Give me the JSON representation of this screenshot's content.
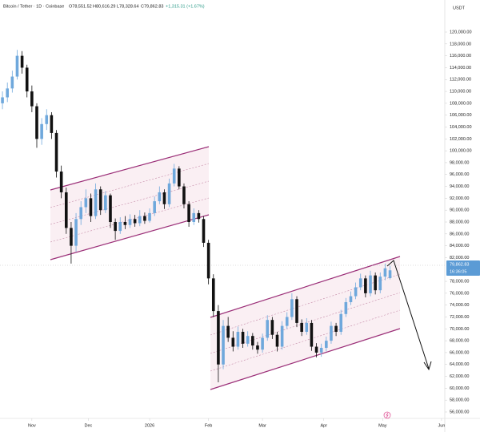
{
  "chart_data": {
    "type": "candlestick",
    "header": {
      "symbol": "Bitcoin / Tether · 1D · Coinbase",
      "open": "O78,551.52",
      "high": "H80,616.29",
      "low": "L78,328.64",
      "close": "C79,862.83",
      "change": "+1,315.31 (+1.67%)"
    },
    "currency": "USDT",
    "last_price_label": "79,862.83",
    "countdown": "16:36:05",
    "up_color": "#6fa8dc",
    "down_color": "#111111",
    "xlim": [
      -0.5,
      90
    ],
    "ylim": [
      54920,
      125400
    ],
    "xticks": [
      {
        "value": 6,
        "label": "Nov"
      },
      {
        "value": 17.5,
        "label": "Dec"
      },
      {
        "value": 30,
        "label": "2026"
      },
      {
        "value": 42,
        "label": "Feb"
      },
      {
        "value": 53,
        "label": "Mar"
      },
      {
        "value": 65.5,
        "label": "Apr"
      },
      {
        "value": 77.5,
        "label": "May"
      },
      {
        "value": 89.5,
        "label": "Jun"
      }
    ],
    "yticks": [
      {
        "value": 56000,
        "label": "56,000.00"
      },
      {
        "value": 58000,
        "label": "58,000.00"
      },
      {
        "value": 60000,
        "label": "60,000.00"
      },
      {
        "value": 62000,
        "label": "62,000.00"
      },
      {
        "value": 64000,
        "label": "64,000.00"
      },
      {
        "value": 66000,
        "label": "66,000.00"
      },
      {
        "value": 68000,
        "label": "68,000.00"
      },
      {
        "value": 70000,
        "label": "70,000.00"
      },
      {
        "value": 72000,
        "label": "72,000.00"
      },
      {
        "value": 74000,
        "label": "74,000.00"
      },
      {
        "value": 76000,
        "label": "76,000.00"
      },
      {
        "value": 78000,
        "label": "78,000.00"
      },
      {
        "value": 82000,
        "label": "82,000.00"
      },
      {
        "value": 84000,
        "label": "84,000.00"
      },
      {
        "value": 86000,
        "label": "86,000.00"
      },
      {
        "value": 88000,
        "label": "88,000.00"
      },
      {
        "value": 90000,
        "label": "90,000.00"
      },
      {
        "value": 92000,
        "label": "92,000.00"
      },
      {
        "value": 94000,
        "label": "94,000.00"
      },
      {
        "value": 96000,
        "label": "96,000.00"
      },
      {
        "value": 98000,
        "label": "98,000.00"
      },
      {
        "value": 100000,
        "label": "100,000.00"
      },
      {
        "value": 102000,
        "label": "102,000.00"
      },
      {
        "value": 104000,
        "label": "104,000.00"
      },
      {
        "value": 106000,
        "label": "106,000.00"
      },
      {
        "value": 108000,
        "label": "108,000.00"
      },
      {
        "value": 110000,
        "label": "110,000.00"
      },
      {
        "value": 112000,
        "label": "112,000.00"
      },
      {
        "value": 114000,
        "label": "114,000.00"
      },
      {
        "value": 116000,
        "label": "116,000.00"
      },
      {
        "value": 118000,
        "label": "118,000.00"
      },
      {
        "value": 120000,
        "label": "120,000.00"
      }
    ],
    "ohlc": [
      [
        108000,
        110000,
        107000,
        109000
      ],
      [
        109000,
        111500,
        108200,
        110500
      ],
      [
        110500,
        113500,
        109800,
        112500
      ],
      [
        112500,
        117000,
        112000,
        116000
      ],
      [
        116000,
        116800,
        113000,
        114000
      ],
      [
        114000,
        114500,
        109000,
        110000
      ],
      [
        110000,
        111000,
        106500,
        107500
      ],
      [
        107500,
        108000,
        100500,
        102000
      ],
      [
        102000,
        105500,
        101000,
        104500
      ],
      [
        104500,
        107000,
        103500,
        106000
      ],
      [
        106000,
        106500,
        102000,
        103000
      ],
      [
        103000,
        103500,
        95500,
        96500
      ],
      [
        96500,
        97500,
        92000,
        93000
      ],
      [
        93000,
        93800,
        86000,
        87000
      ],
      [
        87000,
        88000,
        81000,
        84000
      ],
      [
        84000,
        89500,
        83000,
        88500
      ],
      [
        88500,
        91500,
        87500,
        90500
      ],
      [
        90500,
        93500,
        89500,
        92000
      ],
      [
        92000,
        92800,
        88000,
        89000
      ],
      [
        89000,
        94500,
        88500,
        93500
      ],
      [
        93500,
        94000,
        89200,
        90000
      ],
      [
        90000,
        93200,
        89500,
        92500
      ],
      [
        92500,
        92800,
        87000,
        88000
      ],
      [
        88000,
        88600,
        85000,
        86500
      ],
      [
        86500,
        88800,
        86000,
        88000
      ],
      [
        88000,
        89000,
        86800,
        87500
      ],
      [
        87500,
        89300,
        87000,
        88500
      ],
      [
        88500,
        89200,
        87200,
        87800
      ],
      [
        87800,
        90000,
        87300,
        89000
      ],
      [
        89000,
        89600,
        87700,
        88200
      ],
      [
        88200,
        90300,
        87900,
        89500
      ],
      [
        89500,
        92300,
        89000,
        91500
      ],
      [
        91500,
        94000,
        91000,
        93000
      ],
      [
        93000,
        93500,
        90200,
        91000
      ],
      [
        91000,
        95300,
        90500,
        94500
      ],
      [
        94500,
        97800,
        94000,
        97000
      ],
      [
        97000,
        97400,
        93500,
        94000
      ],
      [
        94000,
        94500,
        90300,
        91000
      ],
      [
        91000,
        91500,
        87200,
        88000
      ],
      [
        88000,
        90300,
        87500,
        89500
      ],
      [
        89500,
        90000,
        87900,
        88500
      ],
      [
        88500,
        89000,
        83800,
        84500
      ],
      [
        84500,
        85000,
        77500,
        78500
      ],
      [
        78500,
        79200,
        72000,
        73000
      ],
      [
        73000,
        74000,
        61000,
        64000
      ],
      [
        64000,
        71500,
        63200,
        70500
      ],
      [
        70500,
        72000,
        67800,
        68500
      ],
      [
        68500,
        69600,
        66200,
        67000
      ],
      [
        67000,
        70400,
        66500,
        69500
      ],
      [
        69500,
        70000,
        66800,
        67500
      ],
      [
        67500,
        69600,
        67000,
        68800
      ],
      [
        68800,
        69300,
        66500,
        67200
      ],
      [
        67200,
        67800,
        65800,
        66500
      ],
      [
        66500,
        69200,
        66000,
        68500
      ],
      [
        68500,
        72300,
        68000,
        71500
      ],
      [
        71500,
        72000,
        68300,
        69000
      ],
      [
        69000,
        69500,
        66200,
        67000
      ],
      [
        67000,
        71300,
        66500,
        70500
      ],
      [
        70500,
        72800,
        70000,
        72000
      ],
      [
        72000,
        76000,
        71500,
        75000
      ],
      [
        75000,
        75500,
        70300,
        71000
      ],
      [
        71000,
        71600,
        68800,
        69500
      ],
      [
        69500,
        71800,
        69000,
        71000
      ],
      [
        71000,
        71500,
        66300,
        67000
      ],
      [
        67000,
        67600,
        65200,
        66000
      ],
      [
        66000,
        67500,
        65300,
        66800
      ],
      [
        66800,
        68700,
        66200,
        68000
      ],
      [
        68000,
        71200,
        67500,
        70500
      ],
      [
        70500,
        71000,
        68800,
        69500
      ],
      [
        69500,
        73200,
        69000,
        72500
      ],
      [
        72500,
        75200,
        72000,
        74500
      ],
      [
        74500,
        76300,
        74000,
        75500
      ],
      [
        75500,
        77800,
        75000,
        77000
      ],
      [
        77000,
        79300,
        76500,
        78500
      ],
      [
        78500,
        79000,
        75300,
        76000
      ],
      [
        76000,
        79800,
        75500,
        79000
      ],
      [
        79000,
        79500,
        75800,
        76500
      ],
      [
        76500,
        79500,
        76000,
        78800
      ],
      [
        78800,
        81000,
        78200,
        80200
      ],
      [
        78551.52,
        80616.29,
        78328.64,
        79862.83
      ]
    ]
  }
}
